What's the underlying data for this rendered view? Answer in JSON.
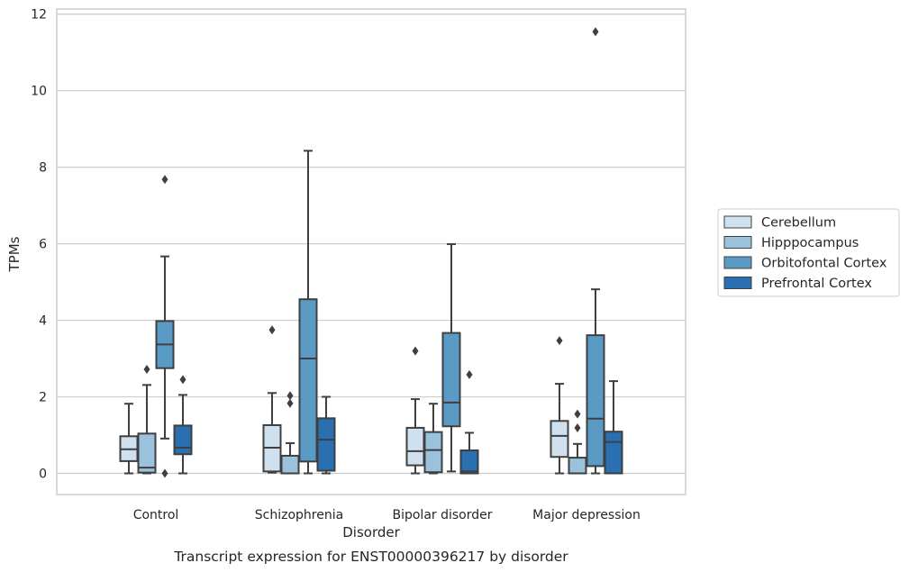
{
  "caption": "Transcript expression for ENST00000396217 by disorder",
  "chart_data": {
    "type": "boxplot",
    "xlabel": "Disorder",
    "ylabel": "TPMs",
    "ylim": [
      -0.55,
      12.15
    ],
    "yticks": [
      0,
      2,
      4,
      6,
      8,
      10,
      12
    ],
    "grid": "horizontal",
    "legend_placement": "right",
    "categories": [
      "Control",
      "Schizophrenia",
      "Bipolar disorder",
      "Major depression"
    ],
    "series": [
      {
        "name": "Cerebellum",
        "color": "#cfe0ef",
        "boxes": [
          {
            "whislo": 0.0,
            "q1": 0.32,
            "med": 0.63,
            "q3": 0.97,
            "whishi": 1.82,
            "fliers": []
          },
          {
            "whislo": 0.02,
            "q1": 0.05,
            "med": 0.67,
            "q3": 1.26,
            "whishi": 2.1,
            "fliers": [
              3.75
            ]
          },
          {
            "whislo": 0.0,
            "q1": 0.21,
            "med": 0.58,
            "q3": 1.19,
            "whishi": 1.94,
            "fliers": [
              3.2
            ]
          },
          {
            "whislo": 0.0,
            "q1": 0.43,
            "med": 0.98,
            "q3": 1.37,
            "whishi": 2.34,
            "fliers": [
              3.47
            ]
          }
        ]
      },
      {
        "name": "Hipppocampus",
        "color": "#9ac2dc",
        "boxes": [
          {
            "whislo": 0.0,
            "q1": 0.02,
            "med": 0.15,
            "q3": 1.04,
            "whishi": 2.31,
            "fliers": [
              2.72
            ]
          },
          {
            "whislo": 0.0,
            "q1": 0.0,
            "med": 0.0,
            "q3": 0.46,
            "whishi": 0.79,
            "fliers": [
              2.03,
              1.83
            ]
          },
          {
            "whislo": 0.0,
            "q1": 0.03,
            "med": 0.61,
            "q3": 1.08,
            "whishi": 1.82,
            "fliers": []
          },
          {
            "whislo": 0.0,
            "q1": 0.0,
            "med": 0.0,
            "q3": 0.41,
            "whishi": 0.77,
            "fliers": [
              1.55,
              1.19
            ]
          }
        ]
      },
      {
        "name": "Orbitofontal Cortex",
        "color": "#5a9bc6",
        "boxes": [
          {
            "whislo": 0.91,
            "q1": 2.75,
            "med": 3.37,
            "q3": 3.98,
            "whishi": 5.67,
            "fliers": [
              7.68,
              0.0
            ]
          },
          {
            "whislo": 0.0,
            "q1": 0.31,
            "med": 3.0,
            "q3": 4.55,
            "whishi": 8.43,
            "fliers": []
          },
          {
            "whislo": 0.05,
            "q1": 1.23,
            "med": 1.85,
            "q3": 3.67,
            "whishi": 5.99,
            "fliers": []
          },
          {
            "whislo": 0.0,
            "q1": 0.19,
            "med": 1.43,
            "q3": 3.61,
            "whishi": 4.81,
            "fliers": [
              11.54
            ]
          }
        ]
      },
      {
        "name": "Prefrontal Cortex",
        "color": "#2a6fb0",
        "boxes": [
          {
            "whislo": 0.0,
            "q1": 0.5,
            "med": 0.67,
            "q3": 1.25,
            "whishi": 2.05,
            "fliers": [
              2.45
            ]
          },
          {
            "whislo": 0.0,
            "q1": 0.07,
            "med": 0.88,
            "q3": 1.44,
            "whishi": 2.0,
            "fliers": []
          },
          {
            "whislo": 0.0,
            "q1": 0.0,
            "med": 0.05,
            "q3": 0.6,
            "whishi": 1.06,
            "fliers": [
              2.58
            ]
          },
          {
            "whislo": 0.0,
            "q1": 0.0,
            "med": 0.82,
            "q3": 1.09,
            "whishi": 2.41,
            "fliers": []
          }
        ]
      }
    ]
  }
}
